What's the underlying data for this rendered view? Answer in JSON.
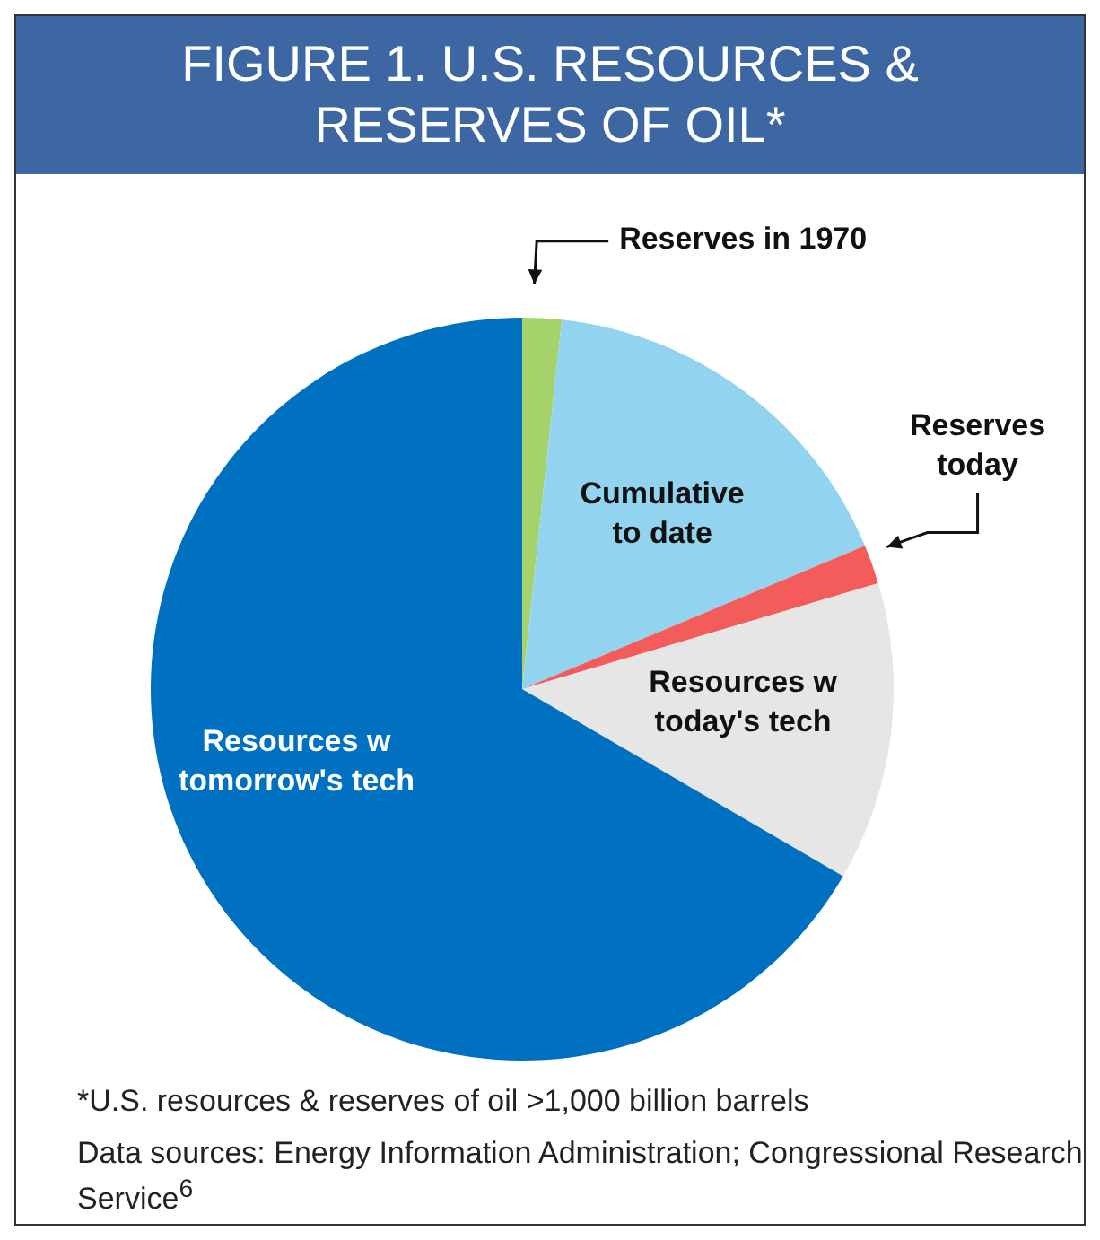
{
  "chart_data": {
    "type": "pie",
    "title": "FIGURE 1. U.S. RESOURCES & RESERVES OF OIL*",
    "categories": [
      "Reserves in 1970",
      "Cumulative to date",
      "Reserves today",
      "Resources w today's tech",
      "Resources w tomorrow's tech"
    ],
    "values": [
      1.7,
      17,
      1.7,
      13,
      66.6
    ],
    "colors": [
      "#a6d26b",
      "#92d3f0",
      "#f45b5b",
      "#e6e6e6",
      "#0070c0"
    ],
    "legend": false,
    "annotations": [
      "*U.S. resources & reserves of oil >1,000 billion barrels",
      "Data sources: Energy Information Administration; Congressional Research Service$^{6}$"
    ]
  }
}
